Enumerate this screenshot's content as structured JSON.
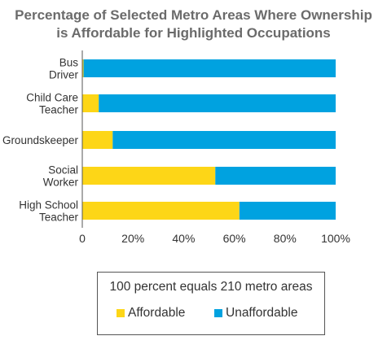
{
  "chart_data": {
    "type": "bar",
    "orientation": "horizontal",
    "stacked": true,
    "title_line1": "Percentage of Selected Metro Areas Where Ownership",
    "title_line2": "is Affordable for Highlighted Occupations",
    "categories": [
      [
        "Bus",
        "Driver"
      ],
      [
        "Child Care",
        "Teacher"
      ],
      [
        "Groundskeeper"
      ],
      [
        "Social",
        "Worker"
      ],
      [
        "High School",
        "Teacher"
      ]
    ],
    "series": [
      {
        "name": "Affordable",
        "color": "#fdd617",
        "values": [
          0.5,
          6.5,
          12,
          52.5,
          62
        ]
      },
      {
        "name": "Unaffordable",
        "color": "#00a2e0",
        "values": [
          99.5,
          93.5,
          88,
          47.5,
          38
        ]
      }
    ],
    "xticks": [
      "0",
      "20%",
      "40%",
      "60%",
      "80%",
      "100%"
    ],
    "xlim": [
      0,
      100
    ],
    "grid": false,
    "legend": {
      "position": "bottom",
      "note": "100 percent equals 210 metro areas",
      "items": [
        "Affordable",
        "Unaffordable"
      ]
    }
  }
}
